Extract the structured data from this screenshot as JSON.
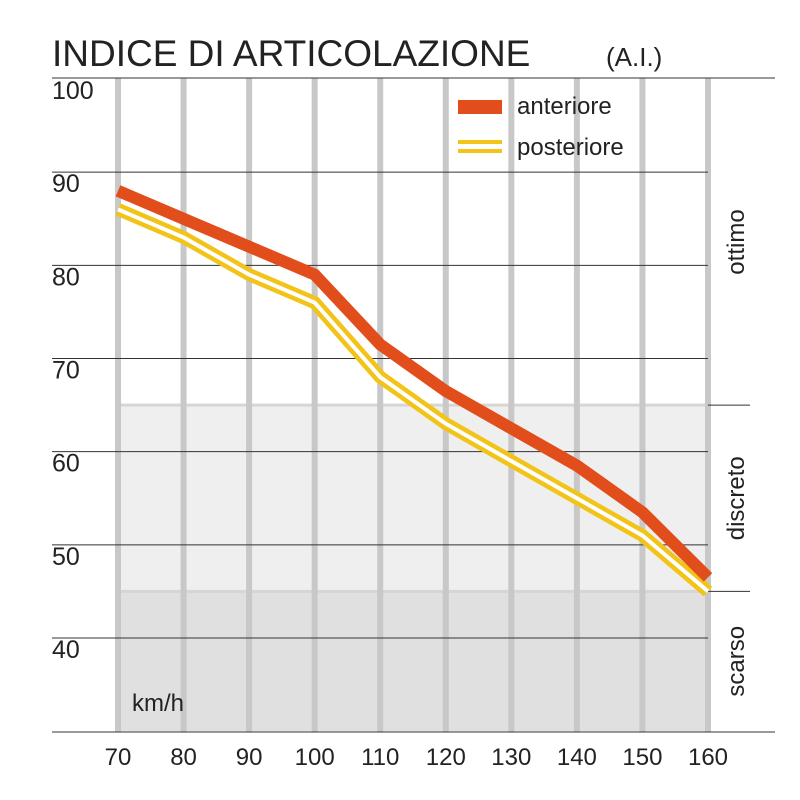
{
  "chart_data": {
    "type": "line",
    "title": "INDICE DI ARTICOLAZIONE",
    "subtitle": "(A.I.)",
    "xlabel": "km/h",
    "ylabel": "",
    "x": [
      70,
      80,
      90,
      100,
      110,
      120,
      130,
      140,
      150,
      160
    ],
    "x_tick_labels": [
      "70",
      "80",
      "90",
      "100",
      "110",
      "120",
      "130",
      "140",
      "150",
      "160"
    ],
    "xlim": [
      70,
      160
    ],
    "ylim": [
      30,
      100
    ],
    "y_ticks": [
      40,
      50,
      60,
      70,
      80,
      90,
      100
    ],
    "y_tick_labels": [
      "40",
      "50",
      "60",
      "70",
      "80",
      "90",
      "100"
    ],
    "grid": true,
    "legend_position": "top-right",
    "series": [
      {
        "name": "anteriore",
        "values": [
          88,
          85,
          82,
          79,
          71.5,
          66.5,
          62.5,
          58.5,
          53.5,
          46.5
        ],
        "color": "#e24e1b",
        "style": "thick-solid"
      },
      {
        "name": "posteriore",
        "values": [
          86,
          83,
          79,
          76,
          68,
          63,
          59,
          55,
          51,
          45
        ],
        "color": "#f2c318",
        "style": "double-line"
      }
    ],
    "bands": [
      {
        "label": "ottimo",
        "from": 65,
        "to": 100,
        "color": "#ffffff"
      },
      {
        "label": "discreto",
        "from": 45,
        "to": 65,
        "color": "#efefef"
      },
      {
        "label": "scarso",
        "from": 30,
        "to": 45,
        "color": "#e0e0e0"
      }
    ]
  }
}
